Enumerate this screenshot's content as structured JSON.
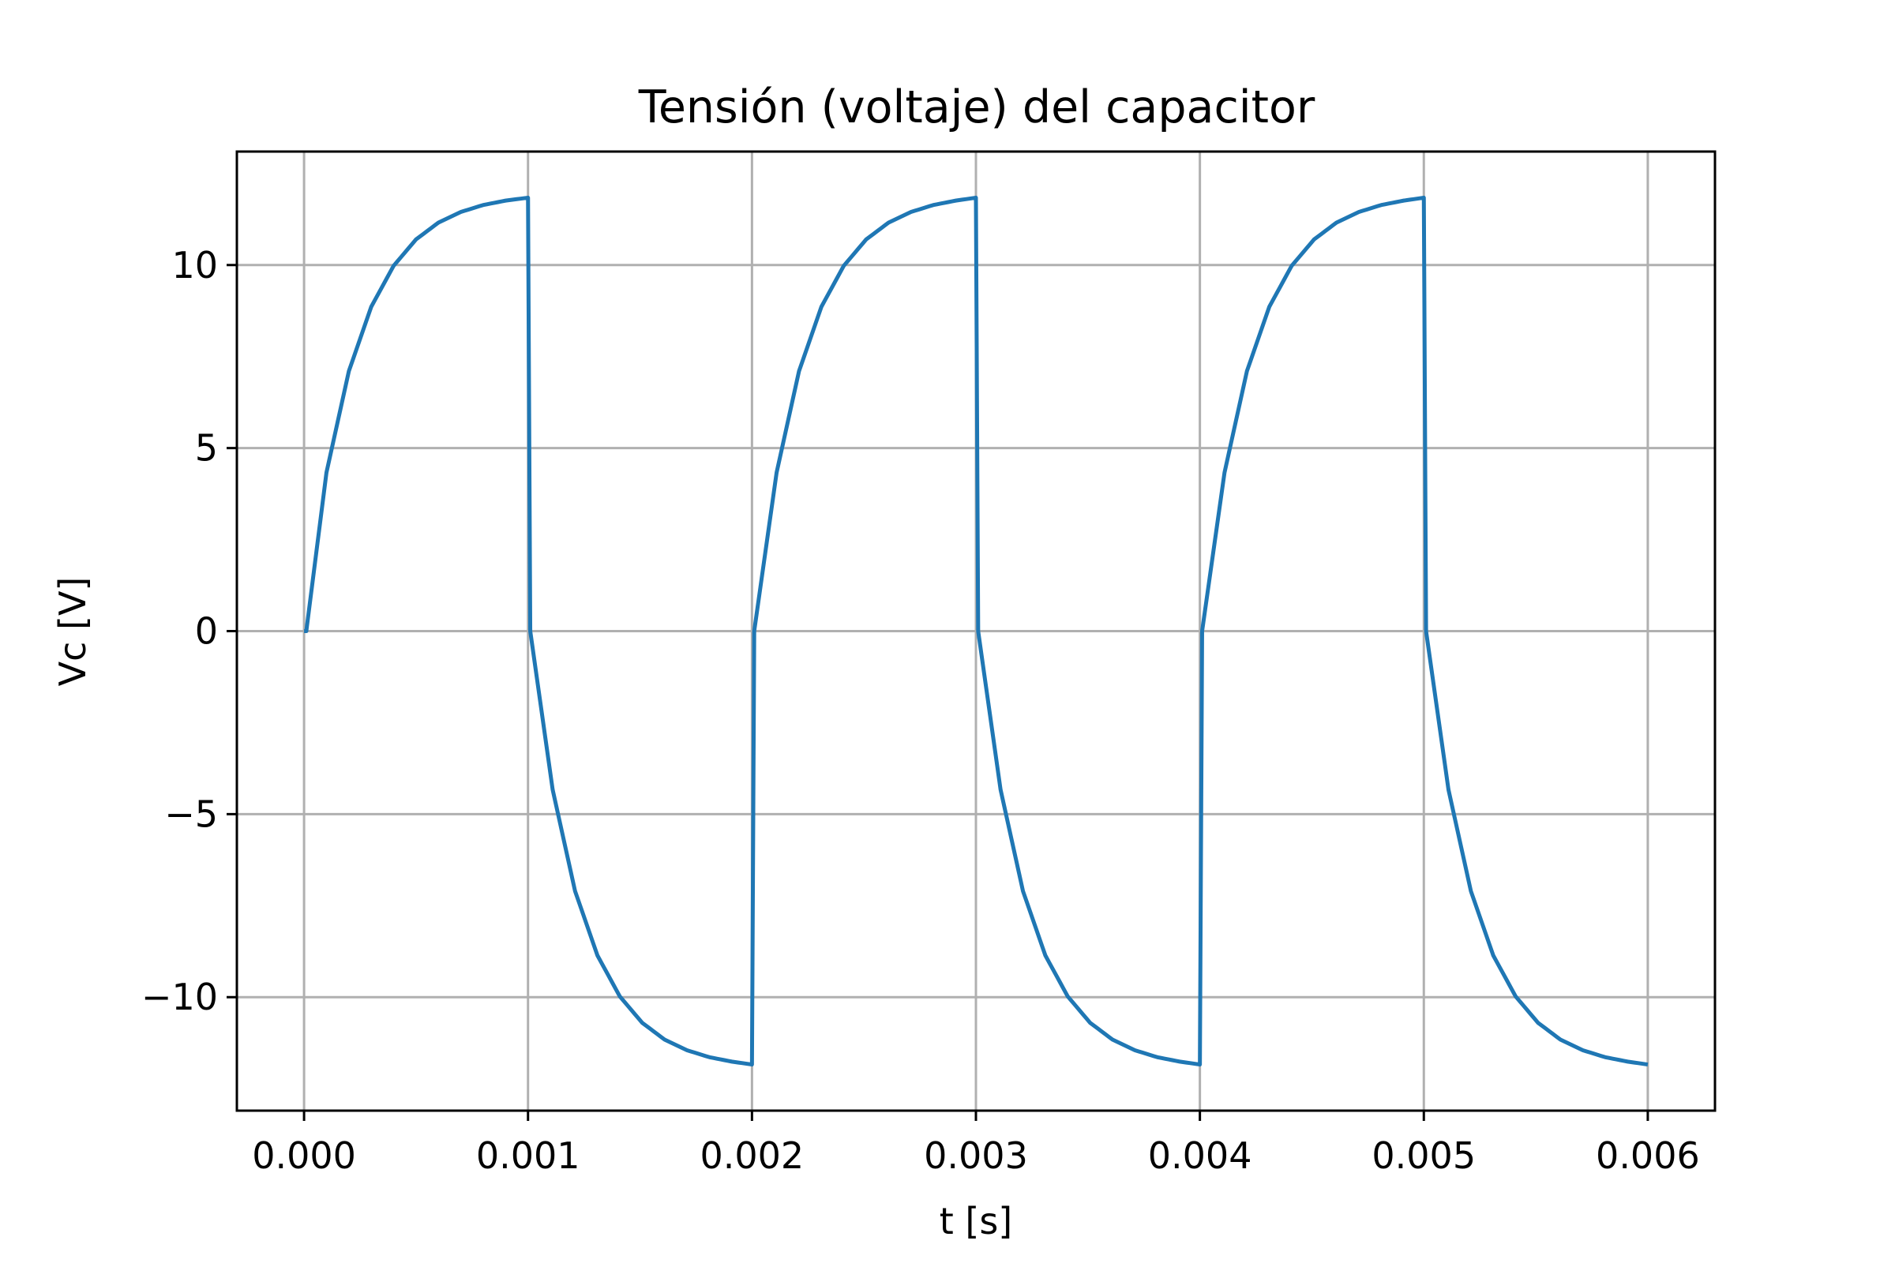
{
  "chart_data": {
    "type": "line",
    "title": "Tensión (voltaje) del capacitor",
    "xlabel": "t [s]",
    "ylabel": "Vc [V]",
    "xlim": [
      -0.0003,
      0.0063
    ],
    "ylim": [
      -13.1,
      13.1
    ],
    "grid": true,
    "x_ticks": [
      0.0,
      0.001,
      0.002,
      0.003,
      0.004,
      0.005,
      0.006
    ],
    "x_tick_labels": [
      "0.000",
      "0.001",
      "0.002",
      "0.003",
      "0.004",
      "0.005",
      "0.006"
    ],
    "y_ticks": [
      -10,
      -5,
      0,
      5,
      10
    ],
    "y_tick_labels": [
      "−10",
      "−5",
      "0",
      "5",
      "10"
    ],
    "series": [
      {
        "color": "#1f77b4",
        "x": [
          0.0,
          1e-05,
          0.0001,
          0.0002,
          0.0003,
          0.0004,
          0.0005,
          0.0006,
          0.0007,
          0.0008,
          0.0009,
          0.001,
          0.00101,
          0.00111,
          0.00121,
          0.00131,
          0.00141,
          0.00151,
          0.00161,
          0.00171,
          0.00181,
          0.00191,
          0.002,
          0.00201,
          0.00211,
          0.00221,
          0.00231,
          0.00241,
          0.00251,
          0.00261,
          0.00271,
          0.00281,
          0.00291,
          0.003,
          0.00301,
          0.00311,
          0.00321,
          0.00331,
          0.00341,
          0.00351,
          0.00361,
          0.00371,
          0.00381,
          0.00391,
          0.004,
          0.00401,
          0.00411,
          0.00421,
          0.00431,
          0.00441,
          0.00451,
          0.00461,
          0.00471,
          0.00481,
          0.00491,
          0.005,
          0.00501,
          0.00511,
          0.00521,
          0.00531,
          0.00541,
          0.00551,
          0.00561,
          0.00571,
          0.00581,
          0.00591,
          0.006
        ],
        "y": [
          0.0,
          0.0,
          4.33,
          7.1,
          8.86,
          9.98,
          10.7,
          11.16,
          11.45,
          11.64,
          11.76,
          11.84,
          0.0,
          -4.33,
          -7.1,
          -8.86,
          -9.98,
          -10.7,
          -11.16,
          -11.45,
          -11.64,
          -11.76,
          -11.84,
          0.0,
          4.33,
          7.1,
          8.86,
          9.98,
          10.7,
          11.16,
          11.45,
          11.64,
          11.76,
          11.84,
          0.0,
          -4.33,
          -7.1,
          -8.86,
          -9.98,
          -10.7,
          -11.16,
          -11.45,
          -11.64,
          -11.76,
          -11.84,
          0.0,
          4.33,
          7.1,
          8.86,
          9.98,
          10.7,
          11.16,
          11.45,
          11.64,
          11.76,
          11.84,
          0.0,
          -4.33,
          -7.1,
          -8.86,
          -9.98,
          -10.7,
          -11.16,
          -11.45,
          -11.64,
          -11.76,
          -11.84
        ]
      }
    ]
  }
}
